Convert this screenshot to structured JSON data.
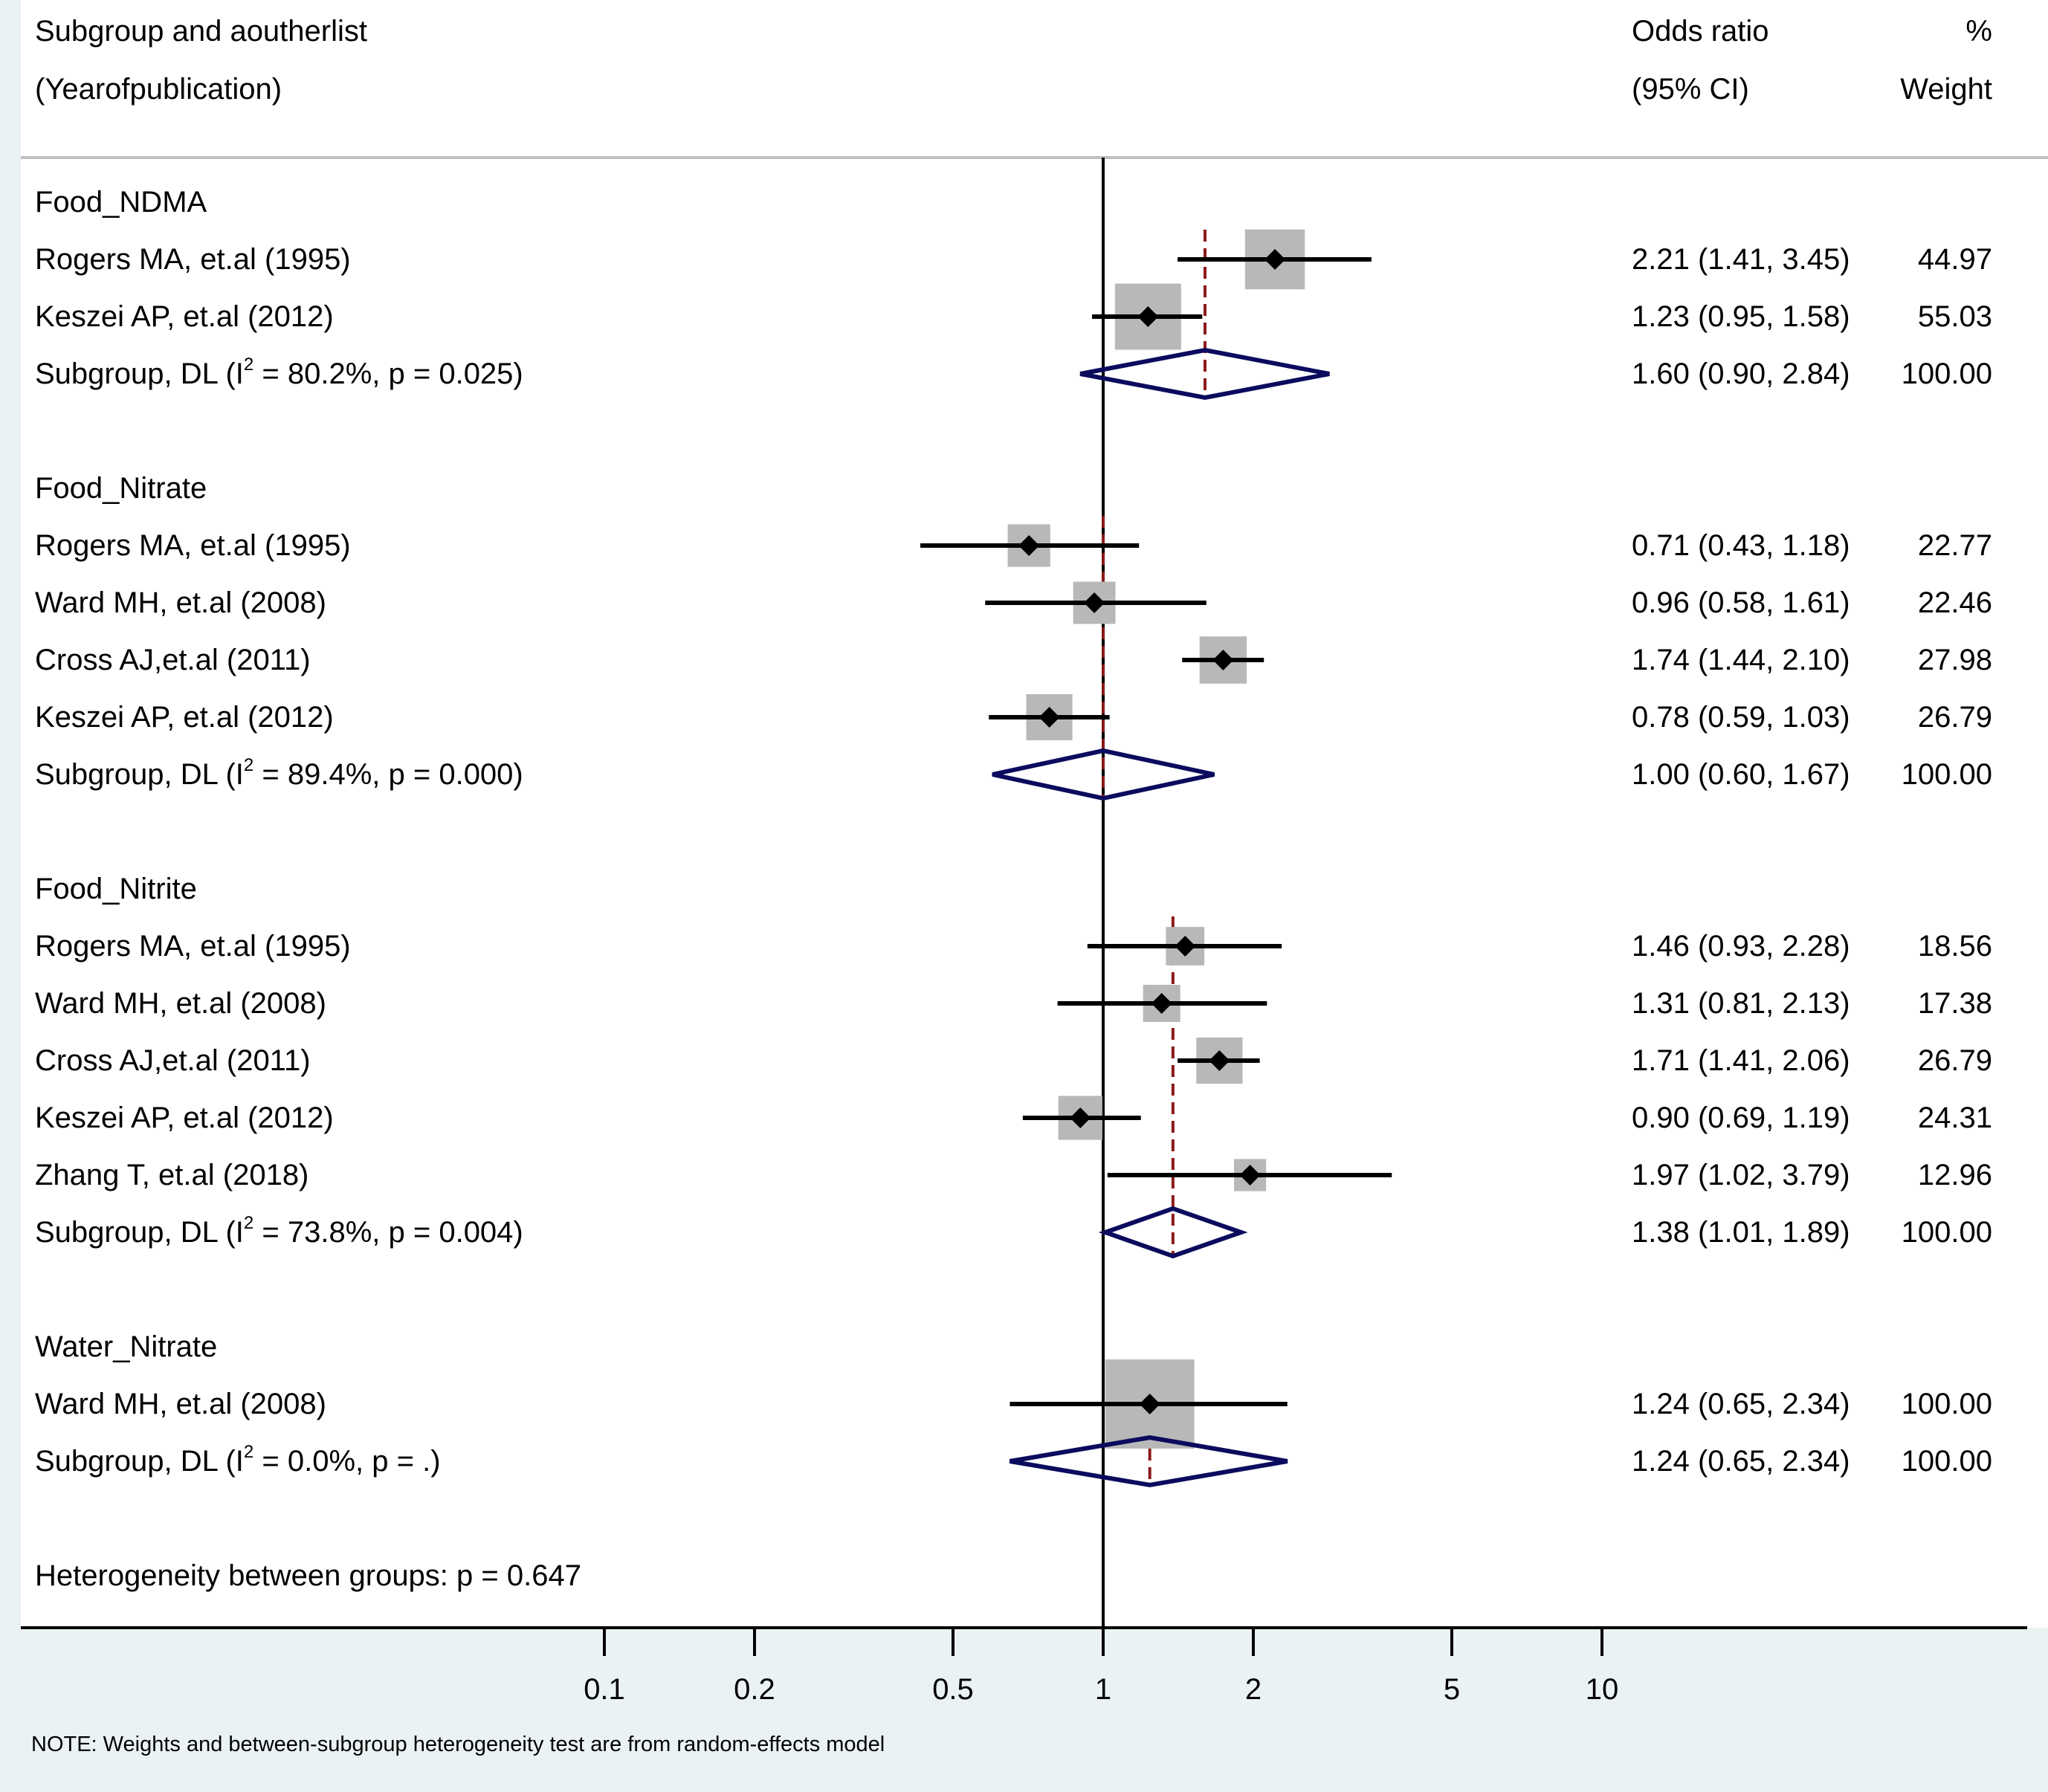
{
  "header": {
    "col1_line1": "Subgroup and aoutherlist",
    "col1_line2": "(Yearofpublication)",
    "col2_line1": "Odds ratio",
    "col2_line2": "(95% CI)",
    "col3_line1": "%",
    "col3_line2": "Weight"
  },
  "rows": [
    {
      "kind": "group",
      "label": "Food_NDMA"
    },
    {
      "kind": "study",
      "label": "Rogers MA, et.al (1995)",
      "or": 2.21,
      "lo": 1.41,
      "hi": 3.45,
      "ci_text": "2.21 (1.41, 3.45)",
      "weight": "44.97"
    },
    {
      "kind": "study",
      "label": "Keszei AP, et.al (2012)",
      "or": 1.23,
      "lo": 0.95,
      "hi": 1.58,
      "ci_text": "1.23 (0.95, 1.58)",
      "weight": "55.03"
    },
    {
      "kind": "subgroup",
      "label_pre": "Subgroup, DL (I",
      "label_sup": "2",
      "label_post": " = 80.2%, p = 0.025)",
      "or": 1.6,
      "lo": 0.9,
      "hi": 2.84,
      "ci_text": "1.60 (0.90, 2.84)",
      "weight": "100.00"
    },
    {
      "kind": "blank"
    },
    {
      "kind": "group",
      "label": "Food_Nitrate"
    },
    {
      "kind": "study",
      "label": "Rogers MA, et.al (1995)",
      "or": 0.71,
      "lo": 0.43,
      "hi": 1.18,
      "ci_text": "0.71 (0.43, 1.18)",
      "weight": "22.77"
    },
    {
      "kind": "study",
      "label": "Ward MH, et.al (2008)",
      "or": 0.96,
      "lo": 0.58,
      "hi": 1.61,
      "ci_text": "0.96 (0.58, 1.61)",
      "weight": "22.46"
    },
    {
      "kind": "study",
      "label": "Cross AJ,et.al (2011)",
      "or": 1.74,
      "lo": 1.44,
      "hi": 2.1,
      "ci_text": "1.74 (1.44, 2.10)",
      "weight": "27.98"
    },
    {
      "kind": "study",
      "label": "Keszei AP, et.al (2012)",
      "or": 0.78,
      "lo": 0.59,
      "hi": 1.03,
      "ci_text": "0.78 (0.59, 1.03)",
      "weight": "26.79"
    },
    {
      "kind": "subgroup",
      "label_pre": "Subgroup, DL (I",
      "label_sup": "2",
      "label_post": " = 89.4%, p = 0.000)",
      "or": 1.0,
      "lo": 0.6,
      "hi": 1.67,
      "ci_text": "1.00 (0.60, 1.67)",
      "weight": "100.00"
    },
    {
      "kind": "blank"
    },
    {
      "kind": "group",
      "label": "Food_Nitrite"
    },
    {
      "kind": "study",
      "label": "Rogers MA, et.al (1995)",
      "or": 1.46,
      "lo": 0.93,
      "hi": 2.28,
      "ci_text": "1.46 (0.93, 2.28)",
      "weight": "18.56"
    },
    {
      "kind": "study",
      "label": "Ward MH, et.al (2008)",
      "or": 1.31,
      "lo": 0.81,
      "hi": 2.13,
      "ci_text": "1.31 (0.81, 2.13)",
      "weight": "17.38"
    },
    {
      "kind": "study",
      "label": "Cross AJ,et.al (2011)",
      "or": 1.71,
      "lo": 1.41,
      "hi": 2.06,
      "ci_text": "1.71 (1.41, 2.06)",
      "weight": "26.79"
    },
    {
      "kind": "study",
      "label": "Keszei AP, et.al (2012)",
      "or": 0.9,
      "lo": 0.69,
      "hi": 1.19,
      "ci_text": "0.90 (0.69, 1.19)",
      "weight": "24.31"
    },
    {
      "kind": "study",
      "label": "Zhang T, et.al (2018)",
      "or": 1.97,
      "lo": 1.02,
      "hi": 3.79,
      "ci_text": "1.97 (1.02, 3.79)",
      "weight": "12.96"
    },
    {
      "kind": "subgroup",
      "label_pre": "Subgroup, DL (I",
      "label_sup": "2",
      "label_post": " = 73.8%, p = 0.004)",
      "or": 1.38,
      "lo": 1.01,
      "hi": 1.89,
      "ci_text": "1.38 (1.01, 1.89)",
      "weight": "100.00"
    },
    {
      "kind": "blank"
    },
    {
      "kind": "group",
      "label": "Water_Nitrate"
    },
    {
      "kind": "study",
      "label": "Ward MH, et.al (2008)",
      "or": 1.24,
      "lo": 0.65,
      "hi": 2.34,
      "ci_text": "1.24 (0.65, 2.34)",
      "weight": "100.00"
    },
    {
      "kind": "subgroup",
      "label_pre": "Subgroup, DL (I",
      "label_sup": "2",
      "label_post": " = 0.0%, p = .)",
      "or": 1.24,
      "lo": 0.65,
      "hi": 2.34,
      "ci_text": "1.24 (0.65, 2.34)",
      "weight": "100.00"
    },
    {
      "kind": "blank"
    },
    {
      "kind": "footer",
      "label": "Heterogeneity between groups: p = 0.647"
    }
  ],
  "note": "NOTE: Weights and between-subgroup heterogeneity test are from random-effects model",
  "colors": {
    "background": "#eaf2f3",
    "panel": "#ffffff",
    "marker_box": "#b8b8b8",
    "diamond": "#0b0b5e",
    "dashed_line": "#8b1a1a",
    "rule": "#c0c0c0"
  },
  "chart_data": {
    "type": "forest",
    "scale": "log",
    "x_ticks": [
      0.1,
      0.2,
      0.5,
      1,
      2,
      5,
      10
    ],
    "x_tick_labels": [
      "0.1",
      "0.2",
      "0.5",
      "1",
      "2",
      "5",
      "10"
    ],
    "null_line": 1,
    "xlabel": "",
    "ylabel": ""
  }
}
